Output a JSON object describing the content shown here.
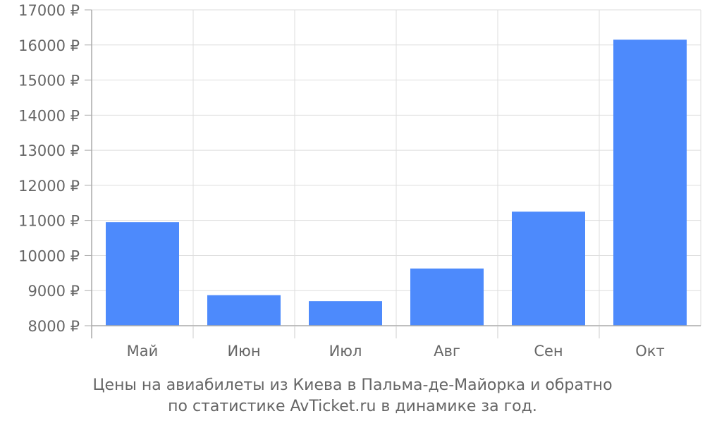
{
  "chart_data": {
    "type": "bar",
    "categories": [
      "Май",
      "Июн",
      "Июл",
      "Авг",
      "Сен",
      "Окт"
    ],
    "values": [
      10950,
      8870,
      8700,
      9630,
      11250,
      16150
    ],
    "ylim": [
      8000,
      17000
    ],
    "yticks": [
      8000,
      9000,
      10000,
      11000,
      12000,
      13000,
      14000,
      15000,
      16000,
      17000
    ],
    "ytick_suffix": " ₽",
    "bar_color": "#4d8afc",
    "grid": true
  },
  "caption": {
    "line1": "Цены на авиабилеты из Киева в Пальма-де-Майорка и обратно",
    "line2": "по статистике AvTicket.ru в динамике за год."
  }
}
